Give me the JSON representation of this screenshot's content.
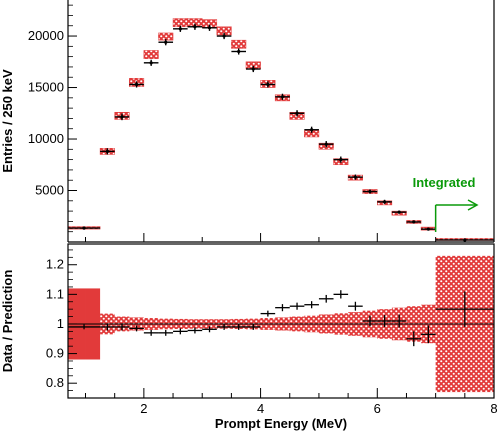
{
  "chart_data": [
    {
      "type": "bar",
      "panel": "spectrum",
      "xlabel": "",
      "ylabel": "Entries / 250 keV",
      "xlim": [
        0.7,
        8.0
      ],
      "ylim": [
        0,
        23500
      ],
      "yticks": [
        5000,
        10000,
        15000,
        20000
      ],
      "annotation": "Integrated",
      "colors": {
        "band": "#e23a3a",
        "data": "#000000",
        "annotation": "#0a9a0a"
      },
      "prediction": [
        {
          "x0": 0.7,
          "x1": 1.25,
          "lo": 1250,
          "hi": 1500
        },
        {
          "x0": 1.25,
          "x1": 1.5,
          "lo": 8500,
          "hi": 9100
        },
        {
          "x0": 1.5,
          "x1": 1.75,
          "lo": 11900,
          "hi": 12600
        },
        {
          "x0": 1.75,
          "x1": 2.0,
          "lo": 15100,
          "hi": 15900
        },
        {
          "x0": 2.0,
          "x1": 2.25,
          "lo": 17800,
          "hi": 18600
        },
        {
          "x0": 2.25,
          "x1": 2.5,
          "lo": 19600,
          "hi": 20300
        },
        {
          "x0": 2.5,
          "x1": 2.75,
          "lo": 20900,
          "hi": 21700
        },
        {
          "x0": 2.75,
          "x1": 3.0,
          "lo": 20900,
          "hi": 21700
        },
        {
          "x0": 3.0,
          "x1": 3.25,
          "lo": 20800,
          "hi": 21600
        },
        {
          "x0": 3.25,
          "x1": 3.5,
          "lo": 20100,
          "hi": 20900
        },
        {
          "x0": 3.5,
          "x1": 3.75,
          "lo": 18800,
          "hi": 19600
        },
        {
          "x0": 3.75,
          "x1": 4.0,
          "lo": 16800,
          "hi": 17500
        },
        {
          "x0": 4.0,
          "x1": 4.25,
          "lo": 15000,
          "hi": 15700
        },
        {
          "x0": 4.25,
          "x1": 4.5,
          "lo": 13700,
          "hi": 14300
        },
        {
          "x0": 4.5,
          "x1": 4.75,
          "lo": 11900,
          "hi": 12600
        },
        {
          "x0": 4.75,
          "x1": 5.0,
          "lo": 10200,
          "hi": 10800
        },
        {
          "x0": 5.0,
          "x1": 5.25,
          "lo": 9000,
          "hi": 9600
        },
        {
          "x0": 5.25,
          "x1": 5.5,
          "lo": 7500,
          "hi": 8100
        },
        {
          "x0": 5.5,
          "x1": 5.75,
          "lo": 6000,
          "hi": 6500
        },
        {
          "x0": 5.75,
          "x1": 6.0,
          "lo": 4700,
          "hi": 5100
        },
        {
          "x0": 6.0,
          "x1": 6.25,
          "lo": 3600,
          "hi": 4000
        },
        {
          "x0": 6.25,
          "x1": 6.5,
          "lo": 2600,
          "hi": 3000
        },
        {
          "x0": 6.5,
          "x1": 6.75,
          "lo": 1800,
          "hi": 2100
        },
        {
          "x0": 6.75,
          "x1": 7.0,
          "lo": 1150,
          "hi": 1450
        },
        {
          "x0": 7.0,
          "x1": 8.0,
          "lo": 150,
          "hi": 350
        }
      ],
      "data": [
        {
          "x": 0.975,
          "xerr": 0.275,
          "y": 1350,
          "yerr": 120
        },
        {
          "x": 1.375,
          "xerr": 0.125,
          "y": 8800,
          "yerr": 300
        },
        {
          "x": 1.625,
          "xerr": 0.125,
          "y": 12150,
          "yerr": 320
        },
        {
          "x": 1.875,
          "xerr": 0.125,
          "y": 15300,
          "yerr": 300
        },
        {
          "x": 2.125,
          "xerr": 0.125,
          "y": 17400,
          "yerr": 300
        },
        {
          "x": 2.375,
          "xerr": 0.125,
          "y": 19400,
          "yerr": 300
        },
        {
          "x": 2.625,
          "xerr": 0.125,
          "y": 20700,
          "yerr": 300
        },
        {
          "x": 2.875,
          "xerr": 0.125,
          "y": 20900,
          "yerr": 300
        },
        {
          "x": 3.125,
          "xerr": 0.125,
          "y": 20800,
          "yerr": 300
        },
        {
          "x": 3.375,
          "xerr": 0.125,
          "y": 20000,
          "yerr": 300
        },
        {
          "x": 3.625,
          "xerr": 0.125,
          "y": 18500,
          "yerr": 300
        },
        {
          "x": 3.875,
          "xerr": 0.125,
          "y": 16800,
          "yerr": 300
        },
        {
          "x": 4.125,
          "xerr": 0.125,
          "y": 15300,
          "yerr": 300
        },
        {
          "x": 4.375,
          "xerr": 0.125,
          "y": 14100,
          "yerr": 300
        },
        {
          "x": 4.625,
          "xerr": 0.125,
          "y": 12500,
          "yerr": 300
        },
        {
          "x": 4.875,
          "xerr": 0.125,
          "y": 10900,
          "yerr": 300
        },
        {
          "x": 5.125,
          "xerr": 0.125,
          "y": 9500,
          "yerr": 300
        },
        {
          "x": 5.375,
          "xerr": 0.125,
          "y": 8000,
          "yerr": 300
        },
        {
          "x": 5.625,
          "xerr": 0.125,
          "y": 6300,
          "yerr": 250
        },
        {
          "x": 5.875,
          "xerr": 0.125,
          "y": 4900,
          "yerr": 200
        },
        {
          "x": 6.125,
          "xerr": 0.125,
          "y": 3900,
          "yerr": 200
        },
        {
          "x": 6.375,
          "xerr": 0.125,
          "y": 2900,
          "yerr": 150
        },
        {
          "x": 6.625,
          "xerr": 0.125,
          "y": 1950,
          "yerr": 150
        },
        {
          "x": 6.875,
          "xerr": 0.125,
          "y": 1250,
          "yerr": 120
        },
        {
          "x": 7.5,
          "xerr": 0.5,
          "y": 200,
          "yerr": 60
        }
      ]
    },
    {
      "type": "scatter",
      "panel": "ratio",
      "xlabel": "Prompt Energy (MeV)",
      "ylabel": "Data / Prediction",
      "xlim": [
        0.7,
        8.0
      ],
      "ylim": [
        0.75,
        1.27
      ],
      "xticks": [
        2,
        4,
        6,
        8
      ],
      "yticks": [
        0.8,
        0.9,
        1,
        1.1,
        1.2
      ],
      "reference_line": 1,
      "colors": {
        "band": "#e23a3a",
        "data": "#000000"
      },
      "band": [
        {
          "x0": 0.7,
          "x1": 1.0,
          "lo": 0.88,
          "hi": 1.12
        },
        {
          "x0": 1.0,
          "x1": 1.25,
          "lo": 0.88,
          "hi": 1.12
        },
        {
          "x0": 1.25,
          "x1": 1.5,
          "lo": 0.965,
          "hi": 1.035
        },
        {
          "x0": 1.5,
          "x1": 1.75,
          "lo": 0.975,
          "hi": 1.025
        },
        {
          "x0": 1.75,
          "x1": 2.0,
          "lo": 0.978,
          "hi": 1.022
        },
        {
          "x0": 2.0,
          "x1": 2.25,
          "lo": 0.98,
          "hi": 1.02
        },
        {
          "x0": 2.25,
          "x1": 2.5,
          "lo": 0.982,
          "hi": 1.018
        },
        {
          "x0": 2.5,
          "x1": 2.75,
          "lo": 0.983,
          "hi": 1.017
        },
        {
          "x0": 2.75,
          "x1": 3.0,
          "lo": 0.984,
          "hi": 1.016
        },
        {
          "x0": 3.0,
          "x1": 3.25,
          "lo": 0.984,
          "hi": 1.016
        },
        {
          "x0": 3.25,
          "x1": 3.5,
          "lo": 0.984,
          "hi": 1.016
        },
        {
          "x0": 3.5,
          "x1": 3.75,
          "lo": 0.983,
          "hi": 1.017
        },
        {
          "x0": 3.75,
          "x1": 4.0,
          "lo": 0.982,
          "hi": 1.018
        },
        {
          "x0": 4.0,
          "x1": 4.25,
          "lo": 0.98,
          "hi": 1.02
        },
        {
          "x0": 4.25,
          "x1": 4.5,
          "lo": 0.978,
          "hi": 1.022
        },
        {
          "x0": 4.5,
          "x1": 4.75,
          "lo": 0.975,
          "hi": 1.025
        },
        {
          "x0": 4.75,
          "x1": 5.0,
          "lo": 0.972,
          "hi": 1.028
        },
        {
          "x0": 5.0,
          "x1": 5.25,
          "lo": 0.968,
          "hi": 1.032
        },
        {
          "x0": 5.25,
          "x1": 5.5,
          "lo": 0.964,
          "hi": 1.036
        },
        {
          "x0": 5.5,
          "x1": 5.75,
          "lo": 0.96,
          "hi": 1.04
        },
        {
          "x0": 5.75,
          "x1": 6.0,
          "lo": 0.955,
          "hi": 1.045
        },
        {
          "x0": 6.0,
          "x1": 6.25,
          "lo": 0.95,
          "hi": 1.05
        },
        {
          "x0": 6.25,
          "x1": 6.5,
          "lo": 0.945,
          "hi": 1.055
        },
        {
          "x0": 6.5,
          "x1": 6.75,
          "lo": 0.94,
          "hi": 1.06
        },
        {
          "x0": 6.75,
          "x1": 7.0,
          "lo": 0.935,
          "hi": 1.065
        },
        {
          "x0": 7.0,
          "x1": 8.0,
          "lo": 0.77,
          "hi": 1.23
        }
      ],
      "data": [
        {
          "x": 0.975,
          "xerr": 0.275,
          "y": 0.99,
          "yerr": 0.008
        },
        {
          "x": 1.375,
          "xerr": 0.125,
          "y": 0.99,
          "yerr": 0.012
        },
        {
          "x": 1.625,
          "xerr": 0.125,
          "y": 0.99,
          "yerr": 0.012
        },
        {
          "x": 1.875,
          "xerr": 0.125,
          "y": 0.985,
          "yerr": 0.01
        },
        {
          "x": 2.125,
          "xerr": 0.125,
          "y": 0.97,
          "yerr": 0.01
        },
        {
          "x": 2.375,
          "xerr": 0.125,
          "y": 0.97,
          "yerr": 0.01
        },
        {
          "x": 2.625,
          "xerr": 0.125,
          "y": 0.975,
          "yerr": 0.01
        },
        {
          "x": 2.875,
          "xerr": 0.125,
          "y": 0.978,
          "yerr": 0.01
        },
        {
          "x": 3.125,
          "xerr": 0.125,
          "y": 0.982,
          "yerr": 0.01
        },
        {
          "x": 3.375,
          "xerr": 0.125,
          "y": 0.99,
          "yerr": 0.01
        },
        {
          "x": 3.625,
          "xerr": 0.125,
          "y": 0.99,
          "yerr": 0.01
        },
        {
          "x": 3.875,
          "xerr": 0.125,
          "y": 0.99,
          "yerr": 0.01
        },
        {
          "x": 4.125,
          "xerr": 0.125,
          "y": 1.035,
          "yerr": 0.01
        },
        {
          "x": 4.375,
          "xerr": 0.125,
          "y": 1.055,
          "yerr": 0.012
        },
        {
          "x": 4.625,
          "xerr": 0.125,
          "y": 1.06,
          "yerr": 0.012
        },
        {
          "x": 4.875,
          "xerr": 0.125,
          "y": 1.065,
          "yerr": 0.012
        },
        {
          "x": 5.125,
          "xerr": 0.125,
          "y": 1.085,
          "yerr": 0.013
        },
        {
          "x": 5.375,
          "xerr": 0.125,
          "y": 1.1,
          "yerr": 0.014
        },
        {
          "x": 5.625,
          "xerr": 0.125,
          "y": 1.06,
          "yerr": 0.015
        },
        {
          "x": 5.875,
          "xerr": 0.125,
          "y": 1.01,
          "yerr": 0.018
        },
        {
          "x": 6.125,
          "xerr": 0.125,
          "y": 1.01,
          "yerr": 0.02
        },
        {
          "x": 6.375,
          "xerr": 0.125,
          "y": 1.01,
          "yerr": 0.022
        },
        {
          "x": 6.625,
          "xerr": 0.125,
          "y": 0.95,
          "yerr": 0.025
        },
        {
          "x": 6.875,
          "xerr": 0.125,
          "y": 0.965,
          "yerr": 0.03
        },
        {
          "x": 7.5,
          "xerr": 0.5,
          "y": 1.05,
          "yerr": 0.06
        }
      ]
    }
  ]
}
